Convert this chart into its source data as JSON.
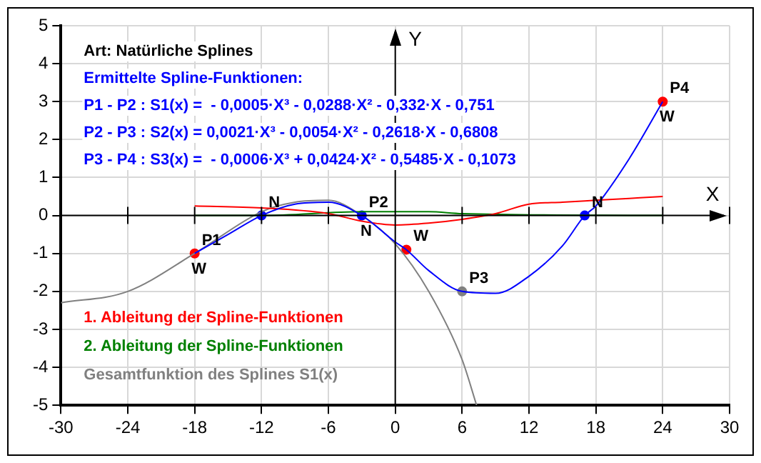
{
  "chart_data": {
    "type": "line",
    "xlabel": "X",
    "ylabel": "Y",
    "xlim": [
      -30,
      30
    ],
    "xticks": [
      -30,
      -24,
      -18,
      -12,
      -6,
      0,
      6,
      12,
      18,
      24,
      30
    ],
    "ylim": [
      -5,
      5
    ],
    "yticks": [
      -5,
      -4,
      -3,
      -2,
      -1,
      0,
      1,
      2,
      3,
      4,
      5
    ],
    "grid": true,
    "legend": "left",
    "series": [
      {
        "color": "#0000ff",
        "x": [
          -18,
          -15,
          -12,
          -9,
          -6,
          -3,
          0,
          1,
          3,
          6,
          9,
          12,
          15,
          17,
          18,
          21,
          24
        ],
        "values": [
          -1,
          -0.5,
          0,
          0.3,
          0.35,
          0,
          -0.7,
          -0.9,
          -1.45,
          -2,
          -2.05,
          -1.6,
          -0.8,
          0,
          0.25,
          1.5,
          3
        ]
      },
      {
        "name": "1. Ableitung der Spline-Funktionen",
        "color": "#ff0000",
        "x": [
          -18,
          -12,
          -6,
          -3,
          0,
          3,
          6,
          9,
          12,
          15,
          18,
          21,
          24
        ],
        "values": [
          0.25,
          0.2,
          0.05,
          -0.15,
          -0.25,
          -0.2,
          -0.1,
          0.05,
          0.3,
          0.35,
          0.4,
          0.45,
          0.5
        ]
      },
      {
        "name": "2. Ableitung der Spline-Funktionen",
        "color": "#008000",
        "x": [
          -18,
          -12,
          -3,
          3,
          6,
          24
        ],
        "values": [
          0,
          0,
          0.1,
          0.1,
          0.05,
          0
        ]
      },
      {
        "name": "Gesamtfunktion des Splines S1(x)",
        "color": "#808080",
        "x": [
          -30,
          -24,
          -18,
          -12,
          -9,
          -6,
          -3,
          0,
          3,
          6,
          7.3
        ],
        "values": [
          -2.3,
          -2,
          -1,
          0.1,
          0.35,
          0.4,
          0,
          -0.75,
          -2,
          -3.8,
          -5
        ]
      },
      {
        "type": "scatter",
        "x": [
          -18,
          -12,
          -3,
          1,
          6,
          17,
          24
        ],
        "values": [
          -1,
          0,
          0,
          -0.9,
          -2,
          0,
          3
        ],
        "colors": [
          "#ff0000",
          "#0000ff",
          "#0000ff",
          "#ff0000",
          "#808080",
          "#0000ff",
          "#ff0000"
        ]
      }
    ],
    "annotations": [
      "Art: Natürliche Splines",
      "Ermittelte Spline-Funktionen:",
      "P1 - P2 : S1(x) =  - 0,0005·X³ - 0,0288·X² - 0,332·X - 0,751",
      "P2 - P3 : S2(x) = 0,0021·X³ - 0,0054·X² - 0,2618·X - 0,6808",
      "P3 - P4 : S3(x) =  - 0,0006·X³ + 0,0424·X² - 0,5485·X - 0,1073",
      {
        "text": "P1",
        "x": -18,
        "y": -1
      },
      {
        "text": "W",
        "x": -18,
        "y": -1
      },
      {
        "text": "P2",
        "x": -3,
        "y": 0
      },
      {
        "text": "N",
        "x": -3,
        "y": 0
      },
      {
        "text": "N",
        "x": -12,
        "y": 0
      },
      {
        "text": "W",
        "x": 1,
        "y": -0.9
      },
      {
        "text": "P3",
        "x": 6,
        "y": -2
      },
      {
        "text": "N",
        "x": 17,
        "y": 0
      },
      {
        "text": "P4",
        "x": 24,
        "y": 3
      },
      {
        "text": "W",
        "x": 24,
        "y": 3
      }
    ]
  }
}
